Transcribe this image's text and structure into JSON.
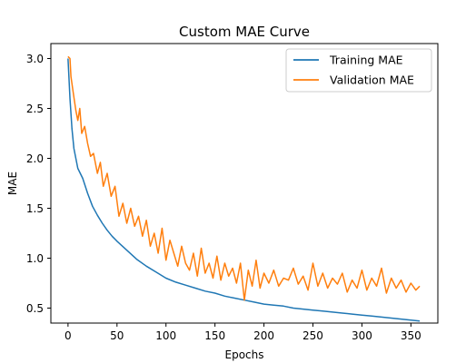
{
  "chart_data": {
    "type": "line",
    "title": "Custom MAE Curve",
    "xlabel": "Epochs",
    "ylabel": "MAE",
    "xlim": [
      -17.5,
      377.5
    ],
    "ylim": [
      0.35,
      3.15
    ],
    "xticks": [
      0,
      50,
      100,
      150,
      200,
      250,
      300,
      350
    ],
    "yticks": [
      0.5,
      1.0,
      1.5,
      2.0,
      2.5,
      3.0
    ],
    "xtick_labels": [
      "0",
      "50",
      "100",
      "150",
      "200",
      "250",
      "300",
      "350"
    ],
    "ytick_labels": [
      "0.5",
      "1.0",
      "1.5",
      "2.0",
      "2.5",
      "3.0"
    ],
    "grid": false,
    "legend_position": "top-right",
    "series": [
      {
        "name": "Training MAE",
        "color": "#1f77b4",
        "x": [
          0,
          2,
          4,
          6,
          8,
          10,
          15,
          20,
          25,
          30,
          35,
          40,
          45,
          50,
          60,
          70,
          80,
          90,
          100,
          110,
          120,
          130,
          140,
          150,
          160,
          170,
          180,
          190,
          200,
          210,
          220,
          230,
          240,
          250,
          260,
          270,
          280,
          290,
          300,
          310,
          320,
          330,
          340,
          350,
          359
        ],
        "y": [
          3.0,
          2.6,
          2.3,
          2.1,
          2.0,
          1.9,
          1.8,
          1.65,
          1.52,
          1.43,
          1.35,
          1.28,
          1.22,
          1.17,
          1.08,
          0.99,
          0.92,
          0.86,
          0.8,
          0.76,
          0.73,
          0.7,
          0.67,
          0.65,
          0.62,
          0.6,
          0.58,
          0.56,
          0.54,
          0.53,
          0.52,
          0.5,
          0.49,
          0.48,
          0.47,
          0.46,
          0.45,
          0.44,
          0.43,
          0.42,
          0.41,
          0.4,
          0.39,
          0.38,
          0.37
        ]
      },
      {
        "name": "Validation MAE",
        "color": "#ff7f0e",
        "x": [
          0,
          2,
          3,
          5,
          8,
          10,
          12,
          14,
          17,
          20,
          23,
          26,
          30,
          33,
          36,
          40,
          44,
          48,
          52,
          56,
          60,
          64,
          68,
          72,
          76,
          80,
          84,
          88,
          92,
          96,
          100,
          104,
          108,
          112,
          116,
          120,
          124,
          128,
          132,
          136,
          140,
          144,
          148,
          152,
          156,
          160,
          164,
          168,
          172,
          176,
          180,
          184,
          188,
          192,
          196,
          200,
          205,
          210,
          215,
          220,
          225,
          230,
          235,
          240,
          245,
          250,
          255,
          260,
          265,
          270,
          275,
          280,
          285,
          290,
          295,
          300,
          305,
          310,
          315,
          320,
          325,
          330,
          335,
          340,
          345,
          350,
          355,
          359
        ],
        "y": [
          3.02,
          3.0,
          2.82,
          2.68,
          2.48,
          2.38,
          2.5,
          2.25,
          2.32,
          2.15,
          2.02,
          2.05,
          1.85,
          1.96,
          1.72,
          1.85,
          1.62,
          1.72,
          1.42,
          1.55,
          1.35,
          1.5,
          1.32,
          1.42,
          1.22,
          1.38,
          1.12,
          1.25,
          1.05,
          1.3,
          0.98,
          1.18,
          1.05,
          0.92,
          1.12,
          0.95,
          0.88,
          1.05,
          0.82,
          1.1,
          0.85,
          0.95,
          0.8,
          1.02,
          0.78,
          0.95,
          0.82,
          0.9,
          0.75,
          0.95,
          0.58,
          0.88,
          0.72,
          0.98,
          0.7,
          0.85,
          0.75,
          0.88,
          0.72,
          0.8,
          0.78,
          0.9,
          0.74,
          0.82,
          0.68,
          0.95,
          0.72,
          0.85,
          0.7,
          0.8,
          0.74,
          0.85,
          0.66,
          0.78,
          0.7,
          0.88,
          0.68,
          0.8,
          0.72,
          0.9,
          0.65,
          0.8,
          0.7,
          0.78,
          0.66,
          0.75,
          0.68,
          0.72
        ]
      }
    ]
  }
}
